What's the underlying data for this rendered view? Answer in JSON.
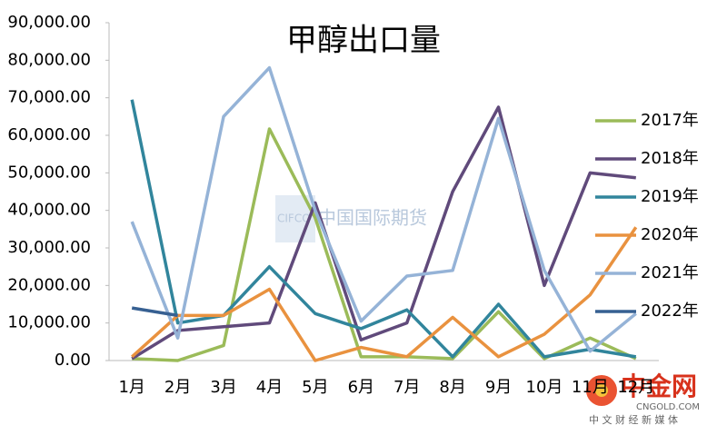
{
  "chart_data": {
    "type": "line",
    "title": "甲醇出口量",
    "categories": [
      "1月",
      "2月",
      "3月",
      "4月",
      "5月",
      "6月",
      "7月",
      "8月",
      "9月",
      "10月",
      "11月",
      "12月"
    ],
    "series": [
      {
        "name": "2017年",
        "color": "#9bbb59",
        "values": [
          500,
          0,
          4000,
          61700,
          38000,
          1000,
          1000,
          500,
          13000,
          500,
          6000,
          500
        ]
      },
      {
        "name": "2018年",
        "color": "#604a7b",
        "values": [
          500,
          8000,
          9000,
          10000,
          42000,
          5500,
          10000,
          45000,
          67500,
          20000,
          50000,
          48700
        ]
      },
      {
        "name": "2019年",
        "color": "#31859c",
        "values": [
          69500,
          10000,
          12000,
          25000,
          12500,
          8500,
          13500,
          1000,
          15000,
          1000,
          3000,
          1000
        ]
      },
      {
        "name": "2020年",
        "color": "#e9923f",
        "values": [
          1000,
          12000,
          12000,
          19000,
          0,
          3500,
          1000,
          11500,
          1000,
          7000,
          17500,
          35500
        ]
      },
      {
        "name": "2021年",
        "color": "#95b3d7",
        "values": [
          37000,
          6000,
          65000,
          78000,
          40000,
          10500,
          22500,
          24000,
          64500,
          24000,
          2500,
          12500
        ]
      },
      {
        "name": "2022年",
        "color": "#376092",
        "values": [
          14000,
          12000,
          null,
          null,
          null,
          null,
          null,
          null,
          null,
          null,
          null,
          null
        ]
      }
    ],
    "ylim": [
      0,
      90000
    ],
    "yticks": [
      {
        "value": 0,
        "label": "0.00"
      },
      {
        "value": 10000,
        "label": "10,000.00"
      },
      {
        "value": 20000,
        "label": "20,000.00"
      },
      {
        "value": 30000,
        "label": "30,000.00"
      },
      {
        "value": 40000,
        "label": "40,000.00"
      },
      {
        "value": 50000,
        "label": "50,000.00"
      },
      {
        "value": 60000,
        "label": "60,000.00"
      },
      {
        "value": 70000,
        "label": "70,000.00"
      },
      {
        "value": 80000,
        "label": "80,000.00"
      },
      {
        "value": 90000,
        "label": "90,000.00"
      }
    ],
    "grid": false,
    "legend": "right",
    "annotations": [
      "CIFCO",
      "中国国际期货",
      "中金网",
      "CNGOLD.COM",
      "中 文 财 经 新 媒 体"
    ]
  }
}
